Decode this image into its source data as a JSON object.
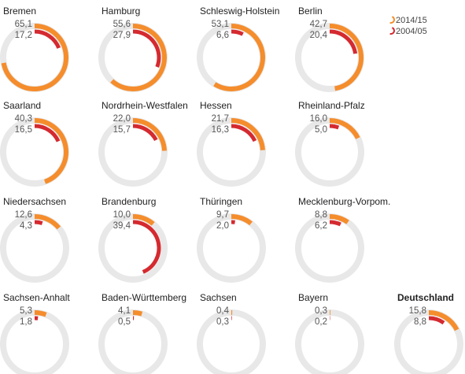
{
  "chart_data": {
    "type": "radial-bar-small-multiples",
    "value_max_reference": 65.1,
    "colors": {
      "track": "#e8e8e8",
      "series_2014": "#f58d2c",
      "series_2004": "#d42a30"
    },
    "legend": [
      {
        "label": "2014/15",
        "color": "#f58d2c"
      },
      {
        "label": "2004/05",
        "color": "#d42a30"
      }
    ],
    "series_names": [
      "2014/15",
      "2004/05"
    ],
    "panels": [
      {
        "name": "Bremen",
        "v2014": 65.1,
        "v2004": 17.2,
        "label2014": "65,1",
        "label2004": "17,2"
      },
      {
        "name": "Hamburg",
        "v2014": 55.6,
        "v2004": 27.9,
        "label2014": "55,6",
        "label2004": "27,9"
      },
      {
        "name": "Schleswig-Holstein",
        "v2014": 53.1,
        "v2004": 6.6,
        "label2014": "53,1",
        "label2004": "6,6"
      },
      {
        "name": "Berlin",
        "v2014": 42.7,
        "v2004": 20.4,
        "label2014": "42,7",
        "label2004": "20,4"
      },
      {
        "name": "Saarland",
        "v2014": 40.3,
        "v2004": 16.5,
        "label2014": "40,3",
        "label2004": "16,5"
      },
      {
        "name": "Nordrhein-Westfalen",
        "v2014": 22.0,
        "v2004": 15.7,
        "label2014": "22,0",
        "label2004": "15,7"
      },
      {
        "name": "Hessen",
        "v2014": 21.7,
        "v2004": 16.3,
        "label2014": "21,7",
        "label2004": "16,3"
      },
      {
        "name": "Rheinland-Pfalz",
        "v2014": 16.0,
        "v2004": 5.0,
        "label2014": "16,0",
        "label2004": "5,0"
      },
      {
        "name": "Niedersachsen",
        "v2014": 12.6,
        "v2004": 4.3,
        "label2014": "12,6",
        "label2004": "4,3"
      },
      {
        "name": "Brandenburg",
        "v2014": 10.0,
        "v2004": 39.4,
        "label2014": "10,0",
        "label2004": "39,4"
      },
      {
        "name": "Thüringen",
        "v2014": 9.7,
        "v2004": 2.0,
        "label2014": "9,7",
        "label2004": "2,0"
      },
      {
        "name": "Mecklenburg-Vorpom.",
        "v2014": 8.8,
        "v2004": 6.2,
        "label2014": "8,8",
        "label2004": "6,2"
      },
      {
        "name": "Sachsen-Anhalt",
        "v2014": 5.3,
        "v2004": 1.8,
        "label2014": "5,3",
        "label2004": "1,8"
      },
      {
        "name": "Baden-Württemberg",
        "v2014": 4.1,
        "v2004": 0.5,
        "label2014": "4,1",
        "label2004": "0,5"
      },
      {
        "name": "Sachsen",
        "v2014": 0.4,
        "v2004": 0.3,
        "label2014": "0,4",
        "label2004": "0,3"
      },
      {
        "name": "Bayern",
        "v2014": 0.3,
        "v2004": 0.2,
        "label2014": "0,3",
        "label2004": "0,2"
      },
      {
        "name": "Deutschland",
        "v2014": 15.8,
        "v2004": 8.8,
        "label2014": "15,8",
        "label2004": "8,8",
        "emphasis": true
      }
    ]
  }
}
